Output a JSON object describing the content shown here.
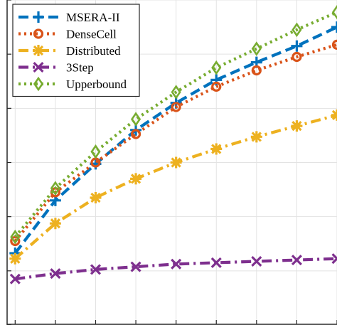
{
  "chart_data": {
    "type": "line",
    "title": "",
    "xlabel": "",
    "ylabel": "",
    "x": [
      1,
      2,
      3,
      4,
      5,
      6,
      7,
      8,
      9
    ],
    "xlim": [
      0.8,
      9
    ],
    "ylim": [
      0,
      12
    ],
    "x_ticks": [
      1,
      2,
      3,
      4,
      5,
      6,
      7,
      8,
      9
    ],
    "y_ticks": [
      0,
      2,
      4,
      6,
      8,
      10,
      12
    ],
    "grid": true,
    "legend_position": "top-left",
    "series": [
      {
        "name": "MSERA-II",
        "color": "#0072BD",
        "line_style": "dash",
        "marker": "plus",
        "values": [
          2.65,
          4.6,
          5.95,
          7.2,
          8.2,
          9.05,
          9.7,
          10.3,
          11.0
        ]
      },
      {
        "name": "DenseCell",
        "color": "#D95319",
        "line_style": "dot",
        "marker": "circle",
        "values": [
          3.1,
          4.9,
          6.0,
          7.05,
          8.05,
          8.8,
          9.4,
          9.9,
          10.35
        ]
      },
      {
        "name": "Distributed",
        "color": "#EDB120",
        "line_style": "dashdot",
        "marker": "asterisk",
        "values": [
          2.45,
          3.75,
          4.7,
          5.4,
          6.0,
          6.5,
          6.95,
          7.35,
          7.75
        ]
      },
      {
        "name": "3Step",
        "color": "#7E2F8E",
        "line_style": "dashdot",
        "marker": "x",
        "values": [
          1.7,
          1.9,
          2.05,
          2.15,
          2.25,
          2.3,
          2.35,
          2.4,
          2.45
        ]
      },
      {
        "name": "Upperbound",
        "color": "#77AC30",
        "line_style": "dot",
        "marker": "diamond",
        "values": [
          3.25,
          5.05,
          6.4,
          7.6,
          8.6,
          9.5,
          10.2,
          10.9,
          11.55
        ]
      }
    ]
  }
}
